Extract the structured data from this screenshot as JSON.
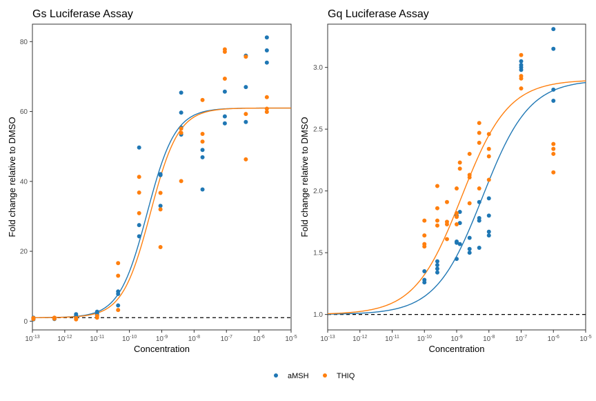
{
  "legend": {
    "placement": "bottom",
    "entries": [
      {
        "label": "aMSH",
        "color": "#1f77b4"
      },
      {
        "label": "THIQ",
        "color": "#ff7f0e"
      }
    ]
  },
  "chart_data": [
    {
      "type": "scatter",
      "title": "Gs Luciferase Assay",
      "xlabel": "Concentration",
      "ylabel": "Fold change relative to DMSO",
      "xscale": "log10",
      "xlim": [
        -13,
        -5
      ],
      "ylim": [
        -2.5,
        85
      ],
      "x_ticks": [
        {
          "exp": -13,
          "base": "10",
          "sup": "-13"
        },
        {
          "exp": -12,
          "base": "10",
          "sup": "-12"
        },
        {
          "exp": -11,
          "base": "10",
          "sup": "-11"
        },
        {
          "exp": -10,
          "base": "10",
          "sup": "-10"
        },
        {
          "exp": -9,
          "base": "10",
          "sup": "-9"
        },
        {
          "exp": -8,
          "base": "10",
          "sup": "-8"
        },
        {
          "exp": -7,
          "base": "10",
          "sup": "-7"
        },
        {
          "exp": -6,
          "base": "10",
          "sup": "-6"
        },
        {
          "exp": -5,
          "base": "10",
          "sup": "-5"
        }
      ],
      "y_ticks": [
        {
          "value": 0,
          "label": "0"
        },
        {
          "value": 20,
          "label": "20"
        },
        {
          "value": 40,
          "label": "40"
        },
        {
          "value": 60,
          "label": "60"
        },
        {
          "value": 80,
          "label": "80"
        }
      ],
      "grid": false,
      "reference_line": {
        "y": 1,
        "style": "dashed",
        "color": "#000000"
      },
      "series": [
        {
          "name": "aMSH",
          "color": "#1f77b4",
          "points": [
            [
              -12.97,
              0.5
            ],
            [
              -12.97,
              0.8
            ],
            [
              -12.97,
              1.0
            ],
            [
              -12.32,
              0.6
            ],
            [
              -12.32,
              0.9
            ],
            [
              -11.65,
              1.0
            ],
            [
              -11.65,
              1.5
            ],
            [
              -11.65,
              2.0
            ],
            [
              -11.0,
              1.8
            ],
            [
              -11.0,
              2.3
            ],
            [
              -11.0,
              2.7
            ],
            [
              -10.35,
              4.5
            ],
            [
              -10.35,
              7.8
            ],
            [
              -10.35,
              8.5
            ],
            [
              -9.7,
              24.3
            ],
            [
              -9.7,
              27.5
            ],
            [
              -9.7,
              49.7
            ],
            [
              -9.04,
              33.0
            ],
            [
              -9.04,
              41.8
            ],
            [
              -9.04,
              42.1
            ],
            [
              -8.4,
              53.4
            ],
            [
              -8.4,
              55.4
            ],
            [
              -8.4,
              59.7
            ],
            [
              -8.4,
              65.4
            ],
            [
              -7.74,
              37.7
            ],
            [
              -7.74,
              46.9
            ],
            [
              -7.74,
              49.0
            ],
            [
              -7.05,
              56.6
            ],
            [
              -7.05,
              58.6
            ],
            [
              -7.05,
              65.7
            ],
            [
              -6.4,
              57.0
            ],
            [
              -6.4,
              67.0
            ],
            [
              -6.4,
              76.0
            ],
            [
              -5.75,
              74.0
            ],
            [
              -5.75,
              77.5
            ],
            [
              -5.75,
              81.2
            ]
          ],
          "fit": {
            "model": "4PL",
            "bottom": 1,
            "top": 61,
            "logEC50": -9.45,
            "hill": 1.0
          }
        },
        {
          "name": "THIQ",
          "color": "#ff7f0e",
          "points": [
            [
              -12.97,
              0.6
            ],
            [
              -12.97,
              0.9
            ],
            [
              -12.32,
              0.7
            ],
            [
              -12.32,
              1.0
            ],
            [
              -11.65,
              0.5
            ],
            [
              -11.65,
              0.9
            ],
            [
              -11.0,
              1.0
            ],
            [
              -11.0,
              1.5
            ],
            [
              -10.35,
              3.2
            ],
            [
              -10.35,
              13.0
            ],
            [
              -10.35,
              16.6
            ],
            [
              -9.7,
              30.9
            ],
            [
              -9.7,
              36.8
            ],
            [
              -9.7,
              41.3
            ],
            [
              -9.04,
              21.2
            ],
            [
              -9.04,
              32.0
            ],
            [
              -9.04,
              36.7
            ],
            [
              -8.4,
              40.1
            ],
            [
              -8.4,
              53.9
            ],
            [
              -8.4,
              55.1
            ],
            [
              -7.74,
              51.4
            ],
            [
              -7.74,
              53.6
            ],
            [
              -7.74,
              63.3
            ],
            [
              -7.05,
              69.4
            ],
            [
              -7.05,
              77.1
            ],
            [
              -7.05,
              77.8
            ],
            [
              -6.4,
              46.3
            ],
            [
              -6.4,
              59.3
            ],
            [
              -6.4,
              75.7
            ],
            [
              -5.75,
              59.9
            ],
            [
              -5.75,
              60.8
            ],
            [
              -5.75,
              64.1
            ]
          ],
          "fit": {
            "model": "4PL",
            "bottom": 1,
            "top": 61,
            "logEC50": -9.35,
            "hill": 1.0
          }
        }
      ]
    },
    {
      "type": "scatter",
      "title": "Gq Luciferase Assay",
      "xlabel": "Concentration",
      "ylabel": "Fold change relative to DMSO",
      "xscale": "log10",
      "xlim": [
        -13,
        -5
      ],
      "ylim": [
        0.875,
        3.35
      ],
      "x_ticks": [
        {
          "exp": -13,
          "base": "10",
          "sup": "-13"
        },
        {
          "exp": -12,
          "base": "10",
          "sup": "-12"
        },
        {
          "exp": -11,
          "base": "10",
          "sup": "-11"
        },
        {
          "exp": -10,
          "base": "10",
          "sup": "-10"
        },
        {
          "exp": -9,
          "base": "10",
          "sup": "-9"
        },
        {
          "exp": -8,
          "base": "10",
          "sup": "-8"
        },
        {
          "exp": -7,
          "base": "10",
          "sup": "-7"
        },
        {
          "exp": -6,
          "base": "10",
          "sup": "-6"
        },
        {
          "exp": -5,
          "base": "10",
          "sup": "-5"
        }
      ],
      "y_ticks": [
        {
          "value": 1.0,
          "label": "1.0"
        },
        {
          "value": 1.5,
          "label": "1.5"
        },
        {
          "value": 2.0,
          "label": "2.0"
        },
        {
          "value": 2.5,
          "label": "2.5"
        },
        {
          "value": 3.0,
          "label": "3.0"
        }
      ],
      "grid": false,
      "reference_line": {
        "y": 1.0,
        "style": "dashed",
        "color": "#000000"
      },
      "series": [
        {
          "name": "aMSH",
          "color": "#1f77b4",
          "points": [
            [
              -10.0,
              1.26
            ],
            [
              -10.0,
              1.28
            ],
            [
              -10.0,
              1.35
            ],
            [
              -9.6,
              1.34
            ],
            [
              -9.6,
              1.37
            ],
            [
              -9.6,
              1.4
            ],
            [
              -9.6,
              1.43
            ],
            [
              -9.0,
              1.45
            ],
            [
              -9.0,
              1.58
            ],
            [
              -9.0,
              1.59
            ],
            [
              -9.0,
              1.8
            ],
            [
              -8.9,
              1.57
            ],
            [
              -8.9,
              1.74
            ],
            [
              -8.9,
              1.83
            ],
            [
              -8.6,
              1.5
            ],
            [
              -8.6,
              1.53
            ],
            [
              -8.6,
              1.62
            ],
            [
              -8.3,
              1.54
            ],
            [
              -8.3,
              1.76
            ],
            [
              -8.3,
              1.78
            ],
            [
              -8.3,
              1.91
            ],
            [
              -8.0,
              1.64
            ],
            [
              -8.0,
              1.67
            ],
            [
              -8.0,
              1.8
            ],
            [
              -8.0,
              1.94
            ],
            [
              -7.0,
              2.98
            ],
            [
              -7.0,
              3.0
            ],
            [
              -7.0,
              3.02
            ],
            [
              -7.0,
              3.05
            ],
            [
              -6.0,
              2.73
            ],
            [
              -6.0,
              2.82
            ],
            [
              -6.0,
              3.15
            ],
            [
              -6.0,
              3.31
            ]
          ],
          "fit": {
            "model": "4PL",
            "bottom": 1,
            "top": 2.9,
            "logEC50": -8.2,
            "hill": 0.6
          }
        },
        {
          "name": "THIQ",
          "color": "#ff7f0e",
          "points": [
            [
              -10.0,
              1.55
            ],
            [
              -10.0,
              1.57
            ],
            [
              -10.0,
              1.64
            ],
            [
              -10.0,
              1.76
            ],
            [
              -9.6,
              1.72
            ],
            [
              -9.6,
              1.76
            ],
            [
              -9.6,
              1.86
            ],
            [
              -9.6,
              2.04
            ],
            [
              -9.3,
              1.61
            ],
            [
              -9.3,
              1.73
            ],
            [
              -9.3,
              1.75
            ],
            [
              -9.3,
              1.91
            ],
            [
              -9.0,
              1.73
            ],
            [
              -9.0,
              1.79
            ],
            [
              -9.0,
              1.82
            ],
            [
              -9.0,
              2.02
            ],
            [
              -8.9,
              2.18
            ],
            [
              -8.9,
              2.23
            ],
            [
              -8.6,
              1.9
            ],
            [
              -8.6,
              2.11
            ],
            [
              -8.6,
              2.13
            ],
            [
              -8.6,
              2.3
            ],
            [
              -8.3,
              2.02
            ],
            [
              -8.3,
              2.39
            ],
            [
              -8.3,
              2.47
            ],
            [
              -8.3,
              2.55
            ],
            [
              -8.0,
              2.09
            ],
            [
              -8.0,
              2.28
            ],
            [
              -8.0,
              2.34
            ],
            [
              -8.0,
              2.46
            ],
            [
              -7.0,
              2.83
            ],
            [
              -7.0,
              2.91
            ],
            [
              -7.0,
              2.93
            ],
            [
              -7.0,
              3.1
            ],
            [
              -6.0,
              2.15
            ],
            [
              -6.0,
              2.3
            ],
            [
              -6.0,
              2.34
            ],
            [
              -6.0,
              2.38
            ]
          ],
          "fit": {
            "model": "4PL",
            "bottom": 1,
            "top": 2.9,
            "logEC50": -8.85,
            "hill": 0.6
          }
        }
      ]
    }
  ]
}
